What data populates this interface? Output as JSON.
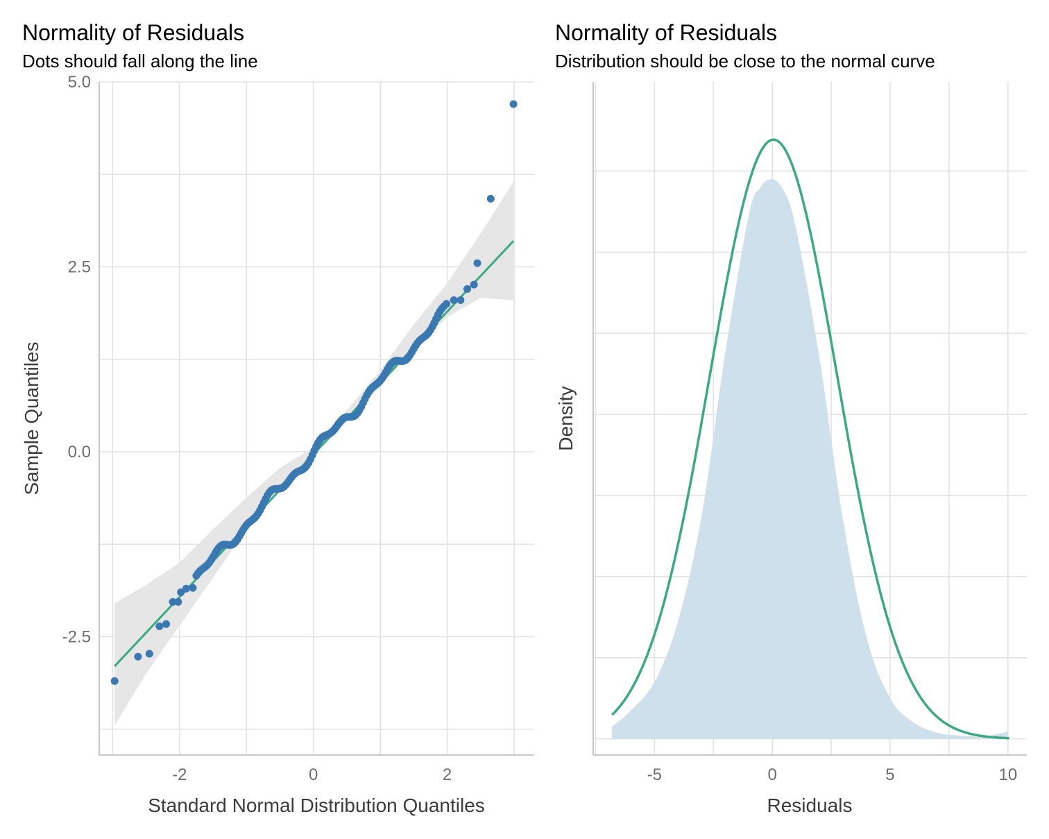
{
  "chart_data": [
    {
      "type": "scatter",
      "title": "Normality of Residuals",
      "subtitle": "Dots should fall along the line",
      "xlabel": "Standard Normal Distribution Quantiles",
      "ylabel": "Sample Quantiles",
      "xlim": [
        -3.2,
        3.3
      ],
      "ylim": [
        -4.1,
        5.0
      ],
      "x_ticks": [
        -2,
        0,
        2
      ],
      "x_tick_labels": [
        "-2",
        "0",
        "2"
      ],
      "y_ticks": [
        -2.5,
        0.0,
        2.5,
        5.0
      ],
      "y_tick_labels": [
        "-2.5",
        "0.0",
        "2.5",
        "5.0"
      ],
      "grid": true,
      "colors": {
        "points": "#3a78b2",
        "line": "#3aaa80",
        "band": "#e6e6e6"
      },
      "reference_line": {
        "x": [
          -2.97,
          2.99
        ],
        "y": [
          -2.9,
          2.85
        ]
      },
      "confidence_band": {
        "x": [
          -2.97,
          -2.5,
          -2.0,
          -1.5,
          -1.0,
          -0.5,
          0.0,
          0.5,
          1.0,
          1.5,
          2.0,
          2.5,
          2.99
        ],
        "lower": [
          -3.7,
          -3.0,
          -2.35,
          -1.7,
          -1.05,
          -0.5,
          -0.06,
          0.4,
          0.88,
          1.38,
          1.82,
          2.08,
          2.05
        ],
        "upper": [
          -2.05,
          -1.8,
          -1.5,
          -1.05,
          -0.62,
          -0.22,
          0.06,
          0.56,
          1.1,
          1.72,
          2.28,
          2.95,
          3.65
        ]
      },
      "points": [
        {
          "x": -2.97,
          "y": -3.1
        },
        {
          "x": -2.62,
          "y": -2.77
        },
        {
          "x": -2.45,
          "y": -2.73
        },
        {
          "x": -2.3,
          "y": -2.36
        },
        {
          "x": -2.2,
          "y": -2.33
        },
        {
          "x": -2.1,
          "y": -2.03
        },
        {
          "x": -2.02,
          "y": -2.03
        },
        {
          "x": -1.98,
          "y": -1.9
        },
        {
          "x": -1.9,
          "y": -1.85
        },
        {
          "x": -1.8,
          "y": -1.84
        },
        {
          "x": 1.99,
          "y": 2.0
        },
        {
          "x": 2.1,
          "y": 2.05
        },
        {
          "x": 2.2,
          "y": 2.05
        },
        {
          "x": 2.3,
          "y": 2.2
        },
        {
          "x": 2.4,
          "y": 2.26
        },
        {
          "x": 2.45,
          "y": 2.55
        },
        {
          "x": 2.65,
          "y": 3.42
        },
        {
          "x": 2.99,
          "y": 4.7
        }
      ]
    },
    {
      "type": "area",
      "title": "Normality of Residuals",
      "subtitle": "Distribution should be close to the normal curve",
      "xlabel": "Residuals",
      "ylabel": "Density",
      "xlim": [
        -7.6,
        10.8
      ],
      "ylim": [
        -0.004,
        0.162
      ],
      "x_ticks": [
        -5,
        0,
        5,
        10
      ],
      "x_tick_labels": [
        "-5",
        "0",
        "5",
        "10"
      ],
      "y_grid_values": [
        0.0,
        0.02,
        0.04,
        0.06,
        0.08,
        0.1,
        0.12,
        0.14
      ],
      "grid": true,
      "colors": {
        "density_fill": "#cfe0ed",
        "normal_curve": "#3aaa80"
      },
      "density_estimate": {
        "x": [
          -6.8,
          -6,
          -5,
          -4,
          -3,
          -2,
          -1,
          -0.5,
          0,
          0.5,
          1,
          2,
          3,
          4,
          5,
          6,
          7,
          8,
          9,
          10
        ],
        "y": [
          0.003,
          0.007,
          0.014,
          0.029,
          0.055,
          0.095,
          0.129,
          0.136,
          0.138,
          0.135,
          0.126,
          0.094,
          0.054,
          0.025,
          0.01,
          0.004,
          0.0015,
          0.0008,
          0.0006,
          0.0018
        ]
      },
      "normal_curve": {
        "mean": 0.05,
        "sd": 2.7,
        "x_range": [
          -6.8,
          10.05
        ]
      }
    }
  ]
}
